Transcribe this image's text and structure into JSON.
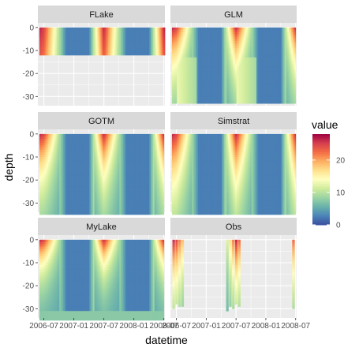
{
  "chart_data": {
    "type": "heatmap",
    "layout": "facet-grid",
    "xlabel": "datetime",
    "ylabel": "depth",
    "legend": {
      "title": "value",
      "ticks": [
        0,
        10,
        20
      ],
      "range": [
        0,
        28
      ],
      "placement": "right",
      "palette": [
        "#3D4E9E",
        "#4A85B8",
        "#6AB2AB",
        "#9BD4A3",
        "#D0EC9C",
        "#FFFFBF",
        "#FEE08B",
        "#FDAE61",
        "#F46D43",
        "#D53E4F",
        "#9E0142"
      ]
    },
    "x_ticks": [
      "2006-07",
      "2007-01",
      "2007-07",
      "2008-01",
      "2008-07"
    ],
    "x_tick_values": [
      0,
      6,
      12,
      18,
      24
    ],
    "x_range": [
      -1.2,
      24.2
    ],
    "y_ticks": [
      0,
      -10,
      -20,
      -30
    ],
    "y_range": [
      -34,
      2
    ],
    "grid": true,
    "season_profile": [
      {
        "m": -0.75,
        "v": 26.4
      },
      {
        "m": 0.0,
        "v": 25.0
      },
      {
        "m": 2.0,
        "v": 14.9
      },
      {
        "m": 4.5,
        "v": 2.5
      },
      {
        "m": 9.0,
        "v": 2.5
      },
      {
        "m": 12.0,
        "v": 26.4
      },
      {
        "m": 14.0,
        "v": 14.9
      },
      {
        "m": 16.5,
        "v": 2.5
      },
      {
        "m": 21.0,
        "v": 2.5
      },
      {
        "m": 24.0,
        "v": 26.4
      }
    ],
    "panels": [
      {
        "name": "FLake",
        "max_depth": 12,
        "strat": 0.05,
        "fill": 5.5,
        "bottom": 12
      },
      {
        "name": "GLM",
        "max_depth": 33,
        "strat": 0.22,
        "fill": 7.5,
        "bottom": 33,
        "warm_deep_months": [
          0,
          2,
          10,
          14
        ]
      },
      {
        "name": "GOTM",
        "max_depth": 35,
        "strat": 0.2,
        "fill": 6.0,
        "bottom": 35
      },
      {
        "name": "Simstrat",
        "max_depth": 35,
        "strat": 0.17,
        "fill": 7.0,
        "bottom": 35
      },
      {
        "name": "MyLake",
        "max_depth": 33,
        "strat": 0.33,
        "fill": 8.5,
        "bottom": 31,
        "bottom_layer_value": 7.5
      },
      {
        "name": "Obs",
        "max_depth": 30,
        "strat": 0.2,
        "fill": 7.5,
        "bottom": 30,
        "observations": [
          {
            "m": -0.8,
            "bottom": 29.5
          },
          {
            "m": -0.2,
            "bottom": 28.0
          },
          {
            "m": 0.4,
            "bottom": 29.0
          },
          {
            "m": 1.0,
            "bottom": 28.5
          },
          {
            "m": 10.0,
            "bottom": 30.5
          },
          {
            "m": 10.6,
            "bottom": 29.0
          },
          {
            "m": 11.2,
            "bottom": 29.5
          },
          {
            "m": 11.8,
            "bottom": 27.5
          },
          {
            "m": 12.4,
            "bottom": 28.5
          },
          {
            "m": 23.3,
            "bottom": 29.5
          }
        ]
      }
    ]
  }
}
